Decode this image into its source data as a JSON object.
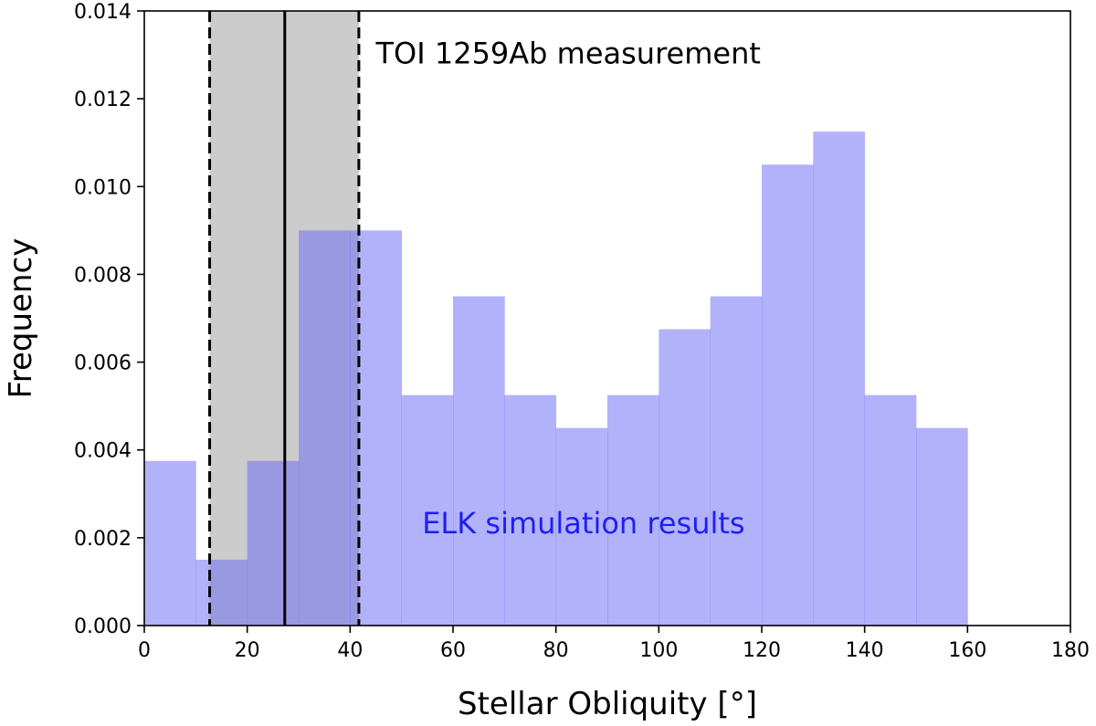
{
  "chart_data": {
    "type": "bar",
    "subtype": "histogram",
    "title": "",
    "xlabel": "Stellar Obliquity [°]",
    "ylabel": "Frequency",
    "xlim": [
      0,
      180
    ],
    "ylim": [
      0,
      0.014
    ],
    "xticks": [
      0,
      20,
      40,
      60,
      80,
      100,
      120,
      140,
      160,
      180
    ],
    "yticks": [
      0.0,
      0.002,
      0.004,
      0.006,
      0.008,
      0.01,
      0.012,
      0.014
    ],
    "xtick_labels": [
      "0",
      "20",
      "40",
      "60",
      "80",
      "100",
      "120",
      "140",
      "160",
      "180"
    ],
    "ytick_labels": [
      "0.000",
      "0.002",
      "0.004",
      "0.006",
      "0.008",
      "0.010",
      "0.012",
      "0.014"
    ],
    "grid": false,
    "bins": {
      "edges": [
        0,
        10,
        20,
        30,
        40,
        50,
        60,
        70,
        80,
        90,
        100,
        110,
        120,
        130,
        140,
        150,
        160
      ],
      "values": [
        0.00375,
        0.0015,
        0.00375,
        0.009,
        0.009,
        0.00525,
        0.0075,
        0.00525,
        0.0045,
        0.00525,
        0.00675,
        0.0075,
        0.0105,
        0.01125,
        0.00525,
        0.0045
      ],
      "color": "#b3b3fb"
    },
    "measurement": {
      "value": 27.3,
      "lower": 12.7,
      "upper": 41.7,
      "band_color": "#cccccc",
      "line_color": "#000000"
    },
    "annotations": [
      {
        "text": "TOI 1259Ab measurement",
        "color": "#000000",
        "x": 45,
        "y": 0.0128
      },
      {
        "text": "ELK simulation results",
        "color": "#1f1ff0",
        "x": 54,
        "y": 0.0021
      }
    ]
  }
}
